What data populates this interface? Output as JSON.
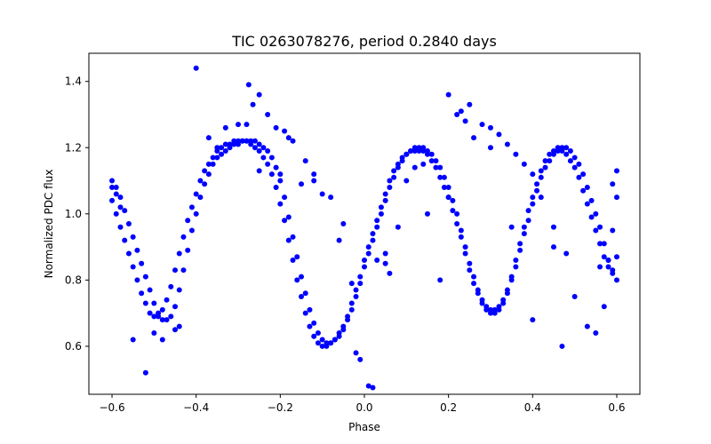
{
  "chart_data": {
    "type": "scatter",
    "title": "TIC 0263078276, period 0.2840 days",
    "xlabel": "Phase",
    "ylabel": "Normalized PDC flux",
    "xlim": [
      -0.655,
      0.655
    ],
    "ylim": [
      0.455,
      1.485
    ],
    "xticks": [
      -0.6,
      -0.4,
      -0.2,
      0.0,
      0.2,
      0.4,
      0.6
    ],
    "xtick_labels": [
      "−0.6",
      "−0.4",
      "−0.2",
      "0.0",
      "0.2",
      "0.4",
      "0.6"
    ],
    "yticks": [
      0.6,
      0.8,
      1.0,
      1.2,
      1.4
    ],
    "ytick_labels": [
      "0.6",
      "0.8",
      "1.0",
      "1.2",
      "1.4"
    ],
    "grid": false,
    "marker_color": "#0000ff",
    "series": [
      {
        "marker": "circle",
        "x": [
          -0.6,
          -0.59,
          -0.58,
          -0.57,
          -0.56,
          -0.55,
          -0.54,
          -0.53,
          -0.52,
          -0.51,
          -0.5,
          -0.49,
          -0.48,
          -0.47,
          -0.46,
          -0.45,
          -0.44,
          -0.43,
          -0.42,
          -0.41,
          -0.4,
          -0.39,
          -0.38,
          -0.37,
          -0.36,
          -0.35,
          -0.34,
          -0.33,
          -0.32,
          -0.31,
          -0.3,
          -0.29,
          -0.28,
          -0.27,
          -0.26,
          -0.25,
          -0.24,
          -0.23,
          -0.22,
          -0.21,
          -0.2,
          -0.19,
          -0.18,
          -0.17,
          -0.16,
          -0.15,
          -0.14,
          -0.13,
          -0.12,
          -0.11,
          -0.1,
          -0.09,
          -0.08,
          -0.07,
          -0.06,
          -0.05,
          -0.04,
          -0.03,
          -0.02,
          -0.01,
          0.0,
          0.01,
          0.02,
          0.03,
          0.04,
          0.05,
          0.06,
          0.07,
          0.08,
          0.09,
          0.1,
          0.11,
          0.12,
          0.13,
          0.14,
          0.15,
          0.16,
          0.17,
          0.18,
          0.19,
          0.2,
          0.21,
          0.22,
          0.23,
          0.24,
          0.25,
          0.26,
          0.27,
          0.28,
          0.29,
          0.3,
          0.31,
          0.32,
          0.33,
          0.34,
          0.35,
          0.36,
          0.37,
          0.38,
          0.39,
          0.4,
          0.41,
          0.42,
          0.43,
          0.44,
          0.45,
          0.46,
          0.47,
          0.48,
          0.49,
          0.5,
          0.51,
          0.52,
          0.53,
          0.54,
          0.55,
          0.56,
          0.57,
          0.58,
          0.59,
          0.6,
          -0.6,
          -0.59,
          -0.58,
          -0.57,
          -0.56,
          -0.55,
          -0.54,
          -0.53,
          -0.52,
          -0.51,
          -0.5,
          -0.49,
          -0.48,
          -0.47,
          -0.46,
          -0.45,
          -0.44,
          -0.43,
          -0.42,
          -0.41,
          -0.4,
          -0.39,
          -0.38,
          -0.37,
          -0.36,
          -0.35,
          -0.34,
          -0.33,
          -0.32,
          -0.31,
          -0.3,
          -0.29,
          -0.28,
          -0.27,
          -0.26,
          -0.25,
          -0.24,
          -0.23,
          -0.22,
          -0.21,
          -0.2,
          -0.19,
          -0.18,
          -0.17,
          -0.16,
          -0.15,
          -0.14,
          -0.13,
          -0.12,
          -0.11,
          -0.1,
          -0.09,
          -0.08,
          -0.07,
          -0.06,
          -0.05,
          -0.04,
          -0.03,
          -0.02,
          -0.01,
          0.0,
          0.01,
          0.02,
          0.03,
          0.04,
          0.05,
          0.06,
          0.07,
          0.08,
          0.09,
          0.1,
          0.11,
          0.12,
          0.13,
          0.14,
          0.15,
          0.16,
          0.17,
          0.18,
          0.19,
          0.2,
          0.21,
          0.22,
          0.23,
          0.24,
          0.25,
          0.26,
          0.27,
          0.28,
          0.29,
          0.3,
          0.31,
          0.32,
          0.33,
          0.34,
          0.35,
          0.36,
          0.37,
          0.38,
          0.39,
          0.4,
          0.41,
          0.42,
          0.43,
          0.44,
          0.45,
          0.46,
          0.47,
          0.48,
          0.49,
          0.5,
          0.51,
          0.52,
          0.53,
          0.54,
          0.55,
          0.56,
          0.57,
          0.58,
          0.59,
          0.6,
          -0.4,
          -0.275,
          -0.265,
          -0.25,
          -0.23,
          -0.21,
          -0.3,
          -0.19,
          -0.17,
          -0.14,
          -0.33,
          -0.37,
          -0.12,
          -0.1,
          -0.06,
          -0.03,
          -0.52,
          -0.55,
          -0.5,
          -0.48,
          -0.44,
          -0.2,
          -0.25,
          -0.15,
          -0.12,
          0.01,
          0.02,
          0.03,
          0.05,
          0.06,
          -0.02,
          -0.01,
          0.08,
          0.1,
          0.12,
          0.14,
          0.2,
          0.22,
          0.23,
          0.24,
          0.25,
          0.26,
          0.28,
          0.3,
          0.32,
          0.34,
          0.36,
          0.38,
          0.4,
          0.42,
          0.45,
          0.48,
          0.5,
          0.53,
          0.55,
          0.57,
          0.59,
          0.6,
          0.6,
          0.59,
          -0.6,
          -0.59,
          -0.58,
          0.58,
          0.56,
          0.4,
          0.2,
          0.15,
          0.18,
          0.3,
          0.35,
          0.45,
          0.47,
          -0.45,
          -0.35,
          -0.28,
          -0.18,
          -0.08,
          -0.05,
          0.05
        ],
        "y": [
          1.1,
          1.08,
          1.05,
          1.01,
          0.97,
          0.93,
          0.89,
          0.85,
          0.81,
          0.77,
          0.73,
          0.7,
          0.68,
          0.68,
          0.69,
          0.72,
          0.77,
          0.83,
          0.89,
          0.95,
          1.0,
          1.05,
          1.09,
          1.12,
          1.15,
          1.17,
          1.18,
          1.19,
          1.2,
          1.21,
          1.21,
          1.22,
          1.22,
          1.22,
          1.22,
          1.21,
          1.2,
          1.19,
          1.17,
          1.14,
          1.1,
          1.05,
          0.99,
          0.93,
          0.87,
          0.81,
          0.76,
          0.71,
          0.67,
          0.64,
          0.62,
          0.61,
          0.61,
          0.62,
          0.63,
          0.65,
          0.68,
          0.71,
          0.75,
          0.79,
          0.84,
          0.88,
          0.92,
          0.96,
          1.0,
          1.04,
          1.08,
          1.11,
          1.14,
          1.16,
          1.18,
          1.19,
          1.2,
          1.2,
          1.2,
          1.19,
          1.18,
          1.16,
          1.14,
          1.11,
          1.08,
          1.04,
          1.0,
          0.95,
          0.9,
          0.85,
          0.81,
          0.77,
          0.74,
          0.72,
          0.71,
          0.71,
          0.72,
          0.74,
          0.77,
          0.81,
          0.86,
          0.91,
          0.96,
          1.01,
          1.05,
          1.09,
          1.13,
          1.16,
          1.18,
          1.19,
          1.2,
          1.2,
          1.2,
          1.19,
          1.17,
          1.15,
          1.12,
          1.08,
          1.04,
          1.0,
          0.96,
          0.91,
          0.86,
          0.83,
          0.8,
          1.04,
          1.0,
          0.96,
          0.92,
          0.88,
          0.84,
          0.8,
          0.76,
          0.73,
          0.7,
          0.69,
          0.69,
          0.71,
          0.74,
          0.78,
          0.83,
          0.88,
          0.93,
          0.98,
          1.02,
          1.06,
          1.1,
          1.13,
          1.15,
          1.17,
          1.19,
          1.2,
          1.21,
          1.21,
          1.22,
          1.22,
          1.22,
          1.22,
          1.21,
          1.2,
          1.19,
          1.17,
          1.15,
          1.12,
          1.08,
          1.03,
          0.98,
          0.92,
          0.86,
          0.8,
          0.75,
          0.7,
          0.66,
          0.63,
          0.61,
          0.6,
          0.6,
          0.61,
          0.62,
          0.64,
          0.66,
          0.69,
          0.73,
          0.77,
          0.81,
          0.86,
          0.9,
          0.94,
          0.98,
          1.02,
          1.06,
          1.1,
          1.13,
          1.15,
          1.17,
          1.18,
          1.19,
          1.19,
          1.19,
          1.19,
          1.18,
          1.16,
          1.14,
          1.11,
          1.08,
          1.05,
          1.01,
          0.97,
          0.93,
          0.88,
          0.83,
          0.79,
          0.76,
          0.73,
          0.71,
          0.7,
          0.7,
          0.71,
          0.73,
          0.76,
          0.8,
          0.84,
          0.89,
          0.94,
          0.98,
          1.03,
          1.07,
          1.11,
          1.14,
          1.16,
          1.18,
          1.19,
          1.19,
          1.18,
          1.16,
          1.14,
          1.11,
          1.07,
          1.03,
          0.99,
          0.95,
          0.91,
          0.87,
          0.84,
          0.82,
          0.87,
          1.44,
          1.39,
          1.33,
          1.36,
          1.3,
          1.26,
          1.27,
          1.25,
          1.22,
          1.16,
          1.26,
          1.23,
          1.1,
          1.06,
          0.92,
          0.79,
          0.52,
          0.62,
          0.64,
          0.62,
          0.66,
          1.12,
          1.13,
          1.09,
          1.12,
          0.48,
          0.475,
          0.86,
          0.85,
          0.82,
          0.58,
          0.56,
          0.96,
          1.1,
          1.14,
          1.15,
          1.36,
          1.3,
          1.31,
          1.28,
          1.33,
          1.23,
          1.27,
          1.26,
          1.24,
          1.21,
          1.18,
          1.15,
          1.12,
          1.05,
          0.96,
          0.88,
          0.75,
          0.66,
          0.64,
          0.72,
          0.95,
          1.13,
          1.05,
          1.09,
          1.08,
          1.06,
          1.02,
          0.86,
          0.84,
          0.68,
          1.05,
          1.0,
          0.8,
          1.2,
          0.96,
          0.9,
          0.6,
          0.65,
          1.2,
          1.27,
          1.23,
          1.05,
          0.97,
          0.88
        ]
      }
    ]
  }
}
